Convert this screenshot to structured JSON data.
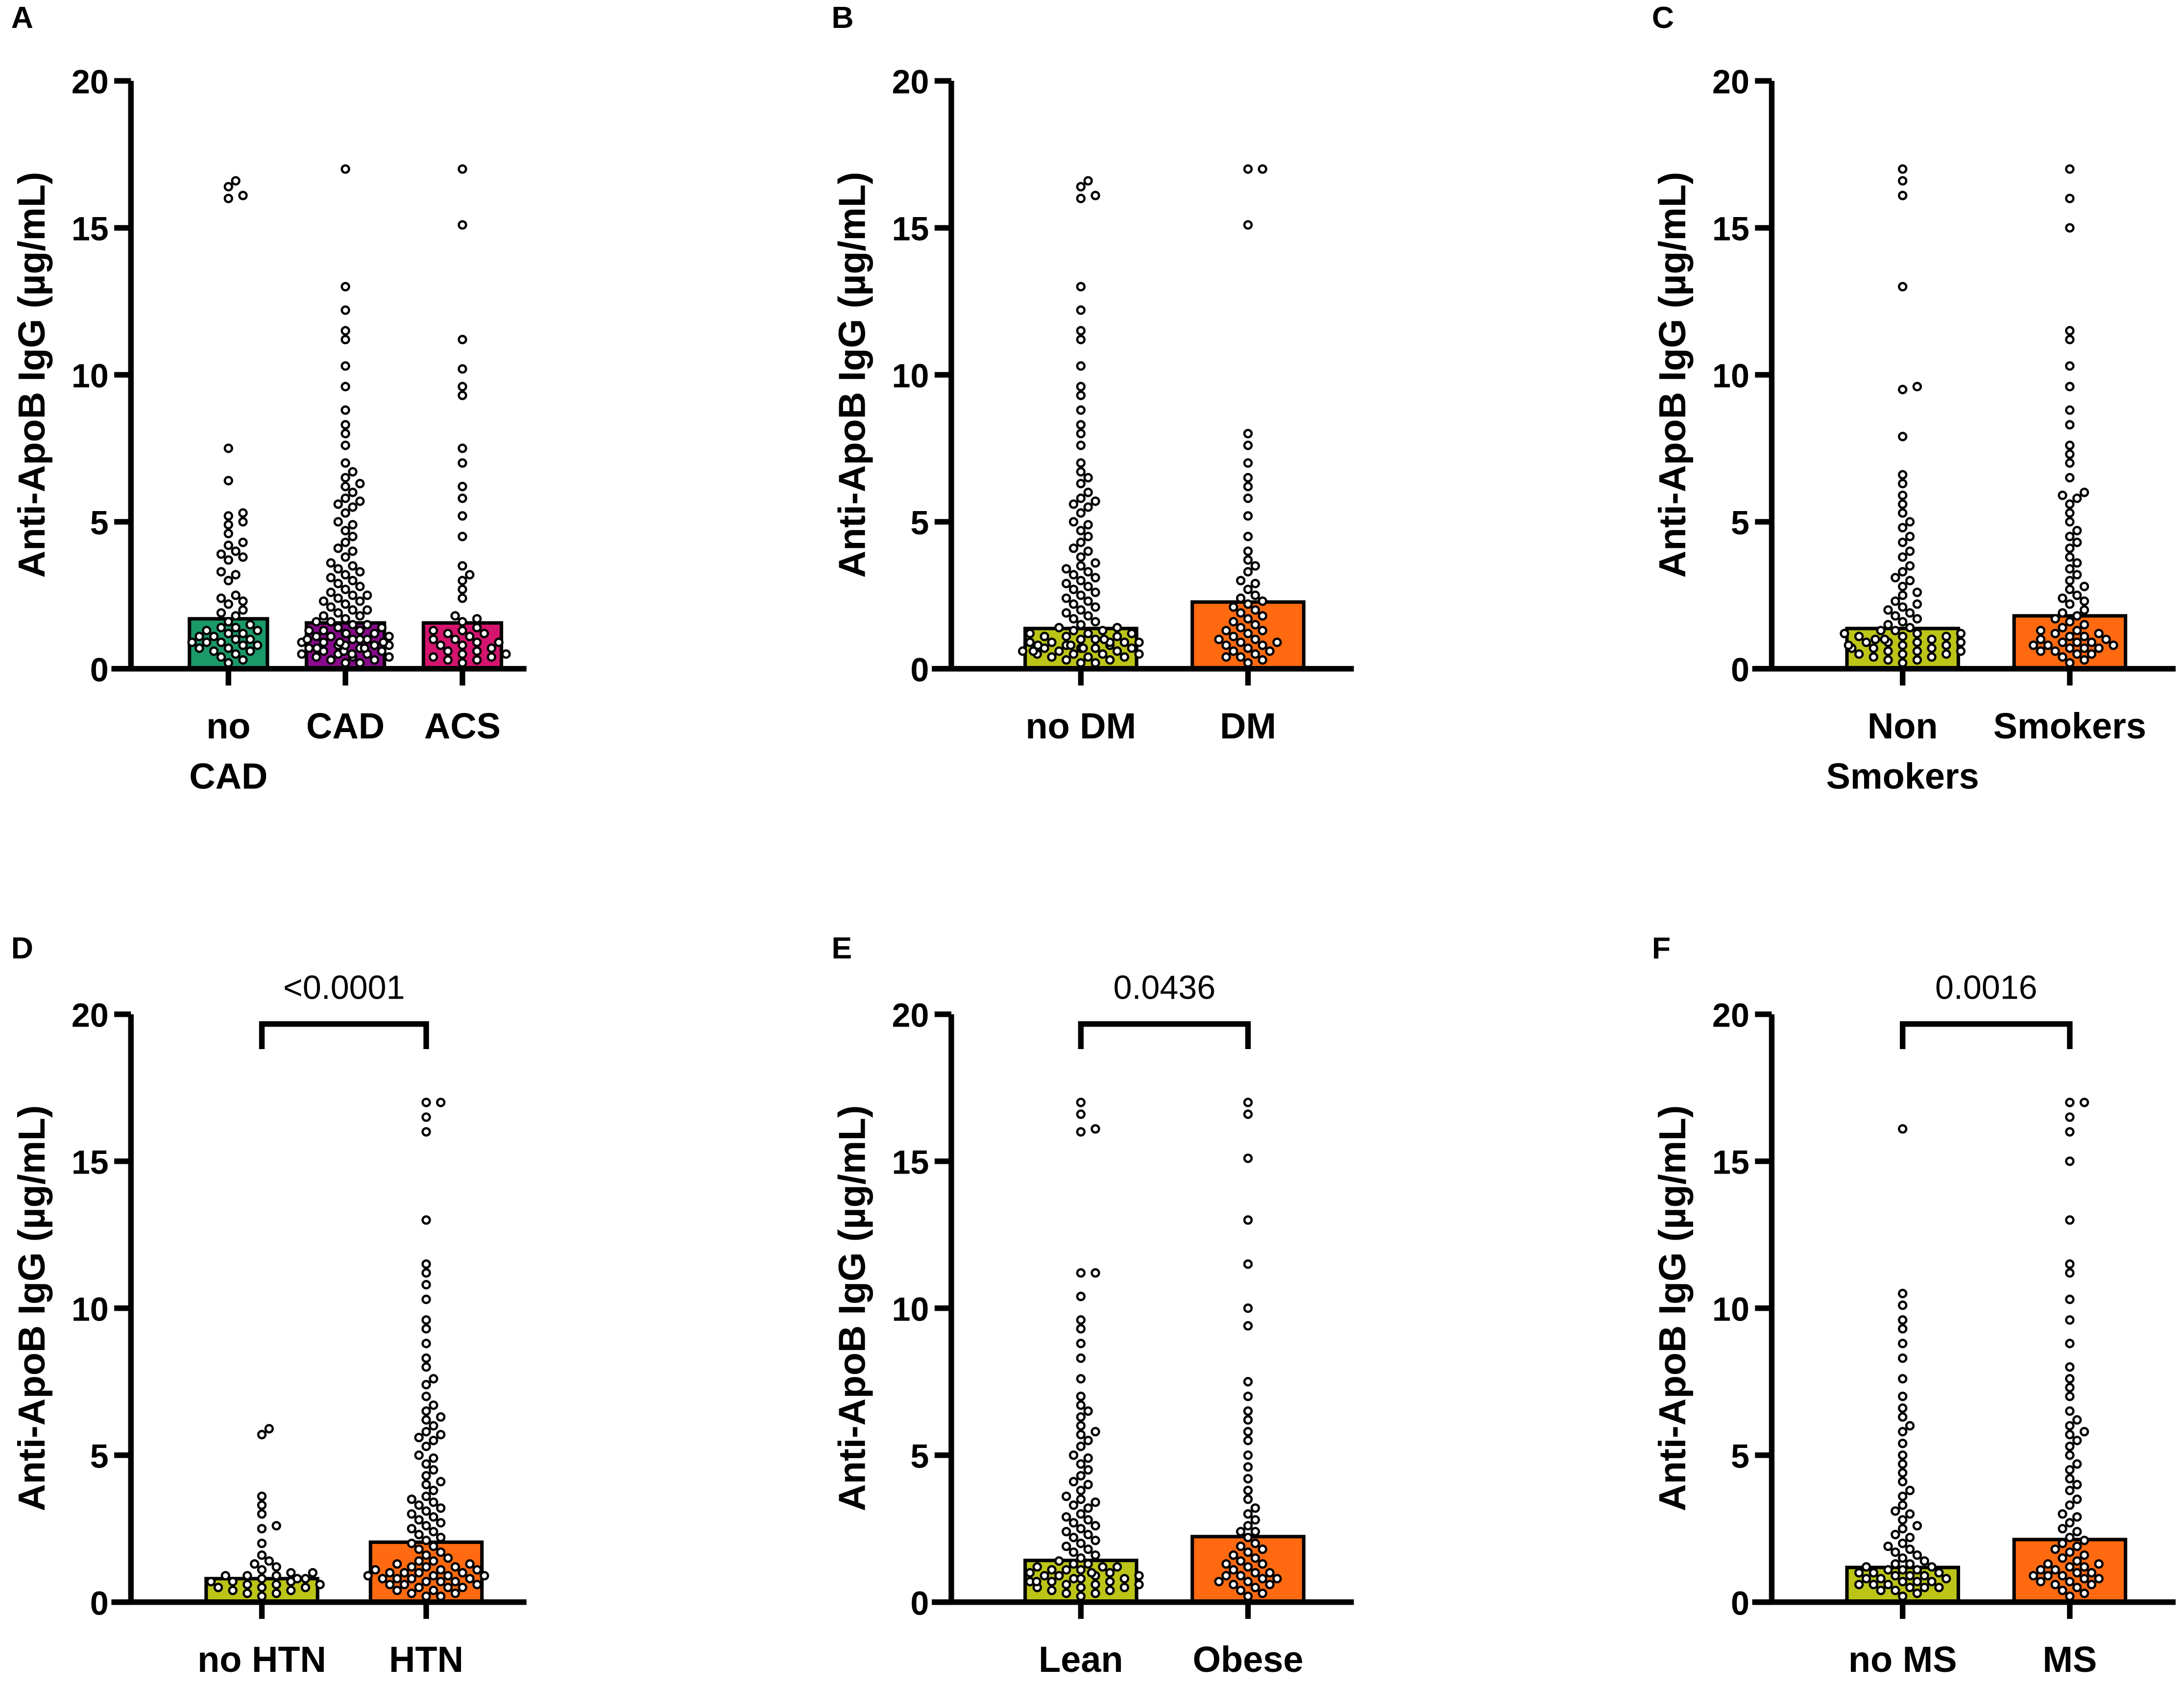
{
  "chart_data": [
    {
      "panel": "A",
      "type": "bar+scatter",
      "ylabel": "Anti-ApoB IgG (µg/mL)",
      "ylim": [
        0,
        20
      ],
      "yticks": [
        "0",
        "5",
        "10",
        "15",
        "20"
      ],
      "groups": [
        {
          "label": [
            "no",
            "CAD"
          ],
          "mean": 1.7,
          "color": "#1a9a68",
          "points": [
            16.6,
            16.4,
            16.1,
            16.0,
            7.5,
            6.4,
            5.3,
            5.2,
            5.0,
            4.9,
            4.6,
            4.3,
            4.2,
            4.0,
            3.9,
            3.8,
            3.7,
            3.3,
            3.2,
            3.0,
            2.5,
            2.4,
            2.3,
            2.2,
            2.0,
            1.9,
            1.8,
            1.6,
            1.5,
            1.4,
            1.3,
            1.3,
            1.2,
            1.1,
            1.0,
            1.0,
            0.9,
            0.9,
            0.8,
            0.8,
            0.7,
            0.7,
            0.6,
            0.5,
            0.4,
            0.3,
            0.2,
            0.9,
            1.1,
            0.6,
            1.4,
            1.2
          ]
        },
        {
          "label": [
            "CAD"
          ],
          "mean": 1.56,
          "color": "#8a0a8c",
          "points": [
            17.0,
            13.0,
            12.2,
            11.5,
            11.2,
            10.3,
            9.6,
            8.8,
            8.3,
            8.0,
            7.6,
            7.0,
            6.7,
            6.5,
            6.3,
            6.2,
            6.0,
            5.8,
            5.7,
            5.6,
            5.5,
            5.3,
            5.0,
            4.9,
            4.7,
            4.5,
            4.3,
            4.1,
            4.0,
            3.8,
            3.6,
            3.5,
            3.4,
            3.3,
            3.2,
            3.1,
            3.0,
            2.9,
            2.8,
            2.7,
            2.6,
            2.5,
            2.5,
            2.4,
            2.3,
            2.3,
            2.2,
            2.1,
            2.0,
            2.0,
            1.9,
            1.8,
            1.8,
            1.7,
            1.6,
            1.6,
            1.5,
            1.5,
            1.4,
            1.4,
            1.3,
            1.3,
            1.2,
            1.2,
            1.1,
            1.1,
            1.0,
            1.0,
            1.0,
            0.9,
            0.9,
            0.9,
            0.8,
            0.8,
            0.8,
            0.7,
            0.7,
            0.7,
            0.6,
            0.6,
            0.6,
            0.5,
            0.5,
            0.5,
            0.4,
            0.4,
            0.3,
            0.3,
            0.2,
            0.2,
            1.1,
            0.9,
            0.7,
            1.3,
            0.8,
            0.6,
            1.0,
            0.5,
            0.4,
            1.2
          ]
        },
        {
          "label": [
            "ACS"
          ],
          "mean": 1.56,
          "color": "#d4146e",
          "points": [
            17.0,
            15.1,
            11.2,
            10.2,
            9.6,
            9.3,
            7.5,
            7.0,
            6.2,
            5.8,
            5.2,
            4.5,
            3.5,
            3.2,
            3.0,
            2.7,
            2.4,
            1.8,
            1.7,
            1.6,
            1.4,
            1.3,
            1.2,
            1.1,
            1.0,
            1.0,
            0.9,
            0.8,
            0.8,
            0.7,
            0.6,
            0.6,
            0.5,
            0.4,
            0.3,
            0.3,
            0.2,
            1.3,
            1.2,
            0.9,
            0.5,
            0.4
          ]
        }
      ]
    },
    {
      "panel": "B",
      "type": "bar+scatter",
      "ylabel": "Anti-ApoB IgG (µg/mL)",
      "ylim": [
        0,
        20
      ],
      "yticks": [
        "0",
        "5",
        "10",
        "15",
        "20"
      ],
      "groups": [
        {
          "label": [
            "no DM"
          ],
          "mean": 1.37,
          "color": "#bcc417",
          "points": [
            16.6,
            16.4,
            16.1,
            16.0,
            13.0,
            12.2,
            11.5,
            11.2,
            10.3,
            9.6,
            9.3,
            8.8,
            8.3,
            8.0,
            7.6,
            7.0,
            6.7,
            6.5,
            6.3,
            6.0,
            5.8,
            5.7,
            5.6,
            5.5,
            5.3,
            5.0,
            4.9,
            4.7,
            4.5,
            4.3,
            4.1,
            4.0,
            3.8,
            3.6,
            3.5,
            3.4,
            3.3,
            3.2,
            3.1,
            3.0,
            2.9,
            2.8,
            2.7,
            2.6,
            2.5,
            2.4,
            2.3,
            2.2,
            2.1,
            2.0,
            1.9,
            1.8,
            1.7,
            1.6,
            1.5,
            1.4,
            1.4,
            1.3,
            1.3,
            1.2,
            1.2,
            1.1,
            1.1,
            1.0,
            1.0,
            1.0,
            0.9,
            0.9,
            0.9,
            0.8,
            0.8,
            0.8,
            0.7,
            0.7,
            0.7,
            0.6,
            0.6,
            0.6,
            0.5,
            0.5,
            0.5,
            0.4,
            0.4,
            0.3,
            0.3,
            0.2,
            0.2,
            1.1,
            0.9,
            0.7,
            0.8,
            0.6,
            1.0,
            0.5,
            0.4,
            1.2,
            0.9,
            0.7
          ]
        },
        {
          "label": [
            "DM"
          ],
          "mean": 2.27,
          "color": "#ff6a10",
          "points": [
            17.0,
            17.0,
            15.1,
            8.0,
            7.6,
            7.0,
            6.5,
            6.2,
            5.8,
            5.2,
            4.5,
            4.0,
            3.7,
            3.5,
            3.3,
            3.0,
            2.9,
            2.7,
            2.5,
            2.3,
            2.2,
            2.1,
            2.0,
            1.9,
            1.8,
            1.6,
            1.5,
            1.4,
            1.3,
            1.2,
            1.1,
            1.0,
            1.0,
            0.9,
            0.8,
            0.8,
            0.7,
            0.6,
            0.5,
            0.4,
            0.3,
            0.2,
            1.3,
            0.9,
            0.6,
            0.4,
            1.7,
            2.4
          ]
        }
      ]
    },
    {
      "panel": "C",
      "type": "bar+scatter",
      "ylabel": "Anti-ApoB IgG (µg/mL)",
      "ylim": [
        0,
        20
      ],
      "yticks": [
        "0",
        "5",
        "10",
        "15",
        "20"
      ],
      "groups": [
        {
          "label": [
            "Non",
            "Smokers"
          ],
          "mean": 1.37,
          "color": "#bcc417",
          "points": [
            17.0,
            16.6,
            16.1,
            13.0,
            9.6,
            9.5,
            7.9,
            6.6,
            6.3,
            5.9,
            5.6,
            5.3,
            5.0,
            4.8,
            4.5,
            4.3,
            4.0,
            3.8,
            3.5,
            3.3,
            3.1,
            3.0,
            2.8,
            2.6,
            2.5,
            2.3,
            2.2,
            2.1,
            2.0,
            1.9,
            1.8,
            1.7,
            1.6,
            1.5,
            1.4,
            1.3,
            1.3,
            1.2,
            1.2,
            1.1,
            1.1,
            1.0,
            1.0,
            0.9,
            0.9,
            0.8,
            0.8,
            0.7,
            0.7,
            0.6,
            0.6,
            0.5,
            0.5,
            0.4,
            0.4,
            0.3,
            0.2,
            1.1,
            0.9,
            0.7,
            0.8,
            0.6,
            1.0,
            0.5,
            1.2,
            0.9,
            0.3
          ]
        },
        {
          "label": [
            "Smokers"
          ],
          "mean": 1.8,
          "color": "#ff6a10",
          "points": [
            17.0,
            16.0,
            15.0,
            11.5,
            11.2,
            10.3,
            9.6,
            8.8,
            8.3,
            7.6,
            7.3,
            7.0,
            6.5,
            6.0,
            5.9,
            5.8,
            5.6,
            5.3,
            5.0,
            4.7,
            4.5,
            4.3,
            4.1,
            3.8,
            3.6,
            3.4,
            3.2,
            3.0,
            2.8,
            2.7,
            2.5,
            2.4,
            2.3,
            2.2,
            2.0,
            1.9,
            1.8,
            1.7,
            1.6,
            1.5,
            1.4,
            1.3,
            1.2,
            1.2,
            1.1,
            1.0,
            1.0,
            0.9,
            0.9,
            0.8,
            0.8,
            0.7,
            0.7,
            0.6,
            0.6,
            0.5,
            0.4,
            0.3,
            0.2,
            1.1,
            0.9,
            0.7,
            1.3,
            0.8,
            0.5
          ]
        }
      ]
    },
    {
      "panel": "D",
      "type": "bar+scatter",
      "ylabel": "Anti-ApoB IgG (µg/mL)",
      "ylim": [
        0,
        20
      ],
      "yticks": [
        "0",
        "5",
        "10",
        "15",
        "20"
      ],
      "pvalue": "<0.0001",
      "groups": [
        {
          "label": [
            "no HTN"
          ],
          "mean": 0.8,
          "color": "#bcc417",
          "points": [
            5.9,
            5.7,
            3.6,
            3.3,
            3.0,
            2.6,
            2.5,
            2.0,
            1.6,
            1.4,
            1.3,
            1.2,
            1.1,
            1.0,
            1.0,
            0.9,
            0.9,
            0.8,
            0.8,
            0.7,
            0.7,
            0.6,
            0.6,
            0.5,
            0.5,
            0.4,
            0.4,
            0.3,
            0.3,
            0.2,
            0.8,
            0.6,
            0.7,
            0.5,
            0.9
          ]
        },
        {
          "label": [
            "HTN"
          ],
          "mean": 2.04,
          "color": "#ff6a10",
          "points": [
            17.0,
            17.0,
            16.5,
            16.0,
            13.0,
            11.5,
            11.2,
            10.8,
            10.3,
            9.6,
            9.3,
            8.8,
            8.3,
            8.0,
            7.6,
            7.4,
            7.0,
            6.7,
            6.5,
            6.3,
            6.2,
            6.0,
            5.8,
            5.7,
            5.6,
            5.5,
            5.3,
            5.0,
            4.9,
            4.7,
            4.5,
            4.3,
            4.1,
            4.0,
            3.8,
            3.6,
            3.5,
            3.4,
            3.3,
            3.2,
            3.1,
            3.0,
            2.9,
            2.8,
            2.7,
            2.6,
            2.5,
            2.4,
            2.3,
            2.2,
            2.1,
            2.0,
            1.9,
            1.8,
            1.7,
            1.6,
            1.5,
            1.4,
            1.4,
            1.3,
            1.3,
            1.2,
            1.2,
            1.1,
            1.1,
            1.0,
            1.0,
            1.0,
            0.9,
            0.9,
            0.9,
            0.8,
            0.8,
            0.8,
            0.7,
            0.7,
            0.6,
            0.6,
            0.5,
            0.5,
            0.4,
            0.4,
            0.3,
            0.3,
            0.2,
            0.2,
            1.1,
            0.9,
            0.7,
            0.8,
            0.6,
            1.0,
            0.5,
            1.2
          ]
        }
      ]
    },
    {
      "panel": "E",
      "type": "bar+scatter",
      "ylabel": "Anti-ApoB IgG (µg/mL)",
      "ylim": [
        0,
        20
      ],
      "yticks": [
        "0",
        "5",
        "10",
        "15",
        "20"
      ],
      "pvalue": "0.0436",
      "groups": [
        {
          "label": [
            "Lean"
          ],
          "mean": 1.42,
          "color": "#bcc417",
          "points": [
            17.0,
            16.6,
            16.1,
            16.0,
            11.2,
            11.2,
            10.4,
            9.6,
            9.3,
            8.8,
            8.3,
            7.6,
            7.0,
            6.7,
            6.5,
            6.3,
            6.0,
            5.8,
            5.7,
            5.5,
            5.3,
            5.0,
            4.9,
            4.7,
            4.5,
            4.3,
            4.1,
            4.0,
            3.8,
            3.6,
            3.5,
            3.4,
            3.3,
            3.2,
            3.0,
            2.9,
            2.8,
            2.7,
            2.6,
            2.5,
            2.4,
            2.3,
            2.2,
            2.1,
            2.0,
            1.9,
            1.8,
            1.7,
            1.6,
            1.5,
            1.4,
            1.3,
            1.3,
            1.2,
            1.2,
            1.1,
            1.1,
            1.0,
            1.0,
            0.9,
            0.9,
            0.8,
            0.8,
            0.7,
            0.7,
            0.6,
            0.6,
            0.5,
            0.5,
            0.4,
            0.4,
            0.3,
            0.3,
            0.2,
            1.1,
            0.9,
            0.7,
            0.8,
            0.6,
            1.0,
            0.5,
            1.2,
            0.9,
            0.7
          ]
        },
        {
          "label": [
            "Obese"
          ],
          "mean": 2.23,
          "color": "#ff6a10",
          "points": [
            17.0,
            16.6,
            15.1,
            13.0,
            11.5,
            10.0,
            9.4,
            7.5,
            7.0,
            6.5,
            6.2,
            5.8,
            5.5,
            5.0,
            4.6,
            4.2,
            3.8,
            3.5,
            3.2,
            3.0,
            2.8,
            2.6,
            2.4,
            2.2,
            2.0,
            1.9,
            1.8,
            1.6,
            1.5,
            1.4,
            1.3,
            1.2,
            1.1,
            1.0,
            1.0,
            0.9,
            0.8,
            0.8,
            0.7,
            0.6,
            0.5,
            0.4,
            0.3,
            0.2,
            1.3,
            0.9,
            0.6,
            1.7,
            2.4,
            0.7
          ]
        }
      ]
    },
    {
      "panel": "F",
      "type": "bar+scatter",
      "ylabel": "Anti-ApoB IgG (µg/mL)",
      "ylim": [
        0,
        20
      ],
      "yticks": [
        "0",
        "5",
        "10",
        "15",
        "20"
      ],
      "pvalue": "0.0016",
      "groups": [
        {
          "label": [
            "no MS"
          ],
          "mean": 1.18,
          "color": "#bcc417",
          "points": [
            16.1,
            10.5,
            10.1,
            9.6,
            9.3,
            8.8,
            8.3,
            7.6,
            7.0,
            6.6,
            6.3,
            6.0,
            5.8,
            5.4,
            5.0,
            4.7,
            4.4,
            4.1,
            3.8,
            3.6,
            3.3,
            3.1,
            3.0,
            2.8,
            2.6,
            2.5,
            2.3,
            2.2,
            2.0,
            1.9,
            1.8,
            1.7,
            1.6,
            1.5,
            1.4,
            1.3,
            1.3,
            1.2,
            1.2,
            1.1,
            1.1,
            1.0,
            1.0,
            0.9,
            0.9,
            0.8,
            0.8,
            0.7,
            0.7,
            0.6,
            0.6,
            0.5,
            0.5,
            0.4,
            0.4,
            0.3,
            0.2,
            1.1,
            0.9,
            0.7,
            0.8,
            0.6,
            1.0,
            0.5
          ]
        },
        {
          "label": [
            "MS"
          ],
          "mean": 2.13,
          "color": "#ff6a10",
          "points": [
            17.0,
            17.0,
            16.5,
            16.0,
            15.0,
            13.0,
            11.5,
            11.2,
            10.3,
            9.6,
            8.8,
            8.0,
            7.6,
            7.3,
            7.0,
            6.5,
            6.2,
            6.0,
            5.8,
            5.7,
            5.5,
            5.3,
            5.0,
            4.7,
            4.5,
            4.2,
            4.0,
            3.8,
            3.5,
            3.3,
            3.0,
            2.9,
            2.7,
            2.5,
            2.4,
            2.2,
            2.1,
            2.0,
            1.9,
            1.8,
            1.7,
            1.6,
            1.5,
            1.4,
            1.3,
            1.2,
            1.2,
            1.1,
            1.0,
            1.0,
            0.9,
            0.9,
            0.8,
            0.8,
            0.7,
            0.7,
            0.6,
            0.5,
            0.4,
            0.3,
            0.2,
            1.1,
            0.9,
            1.3,
            0.6
          ]
        }
      ]
    }
  ]
}
